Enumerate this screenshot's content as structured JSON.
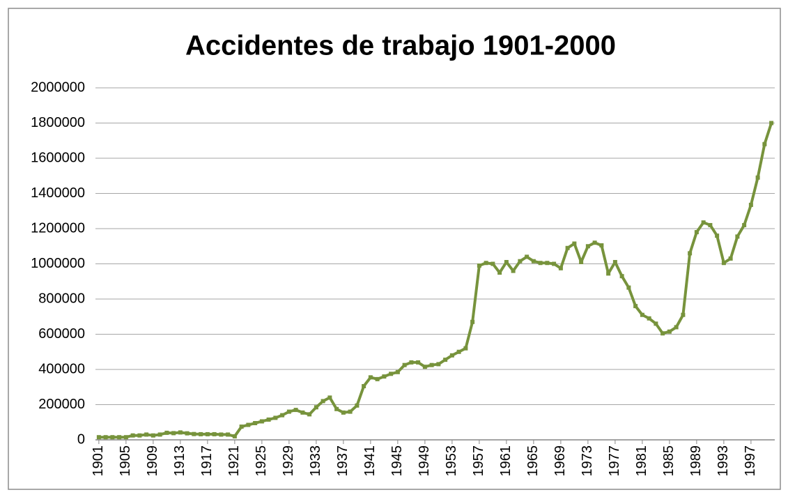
{
  "chart_data": {
    "type": "line",
    "title": "Accidentes de trabajo 1901-2000",
    "x": [
      1901,
      1902,
      1903,
      1904,
      1905,
      1906,
      1907,
      1908,
      1909,
      1910,
      1911,
      1912,
      1913,
      1914,
      1915,
      1916,
      1917,
      1918,
      1919,
      1920,
      1921,
      1922,
      1923,
      1924,
      1925,
      1926,
      1927,
      1928,
      1929,
      1930,
      1931,
      1932,
      1933,
      1934,
      1935,
      1936,
      1937,
      1938,
      1939,
      1940,
      1941,
      1942,
      1943,
      1944,
      1945,
      1946,
      1947,
      1948,
      1949,
      1950,
      1951,
      1952,
      1953,
      1954,
      1955,
      1956,
      1957,
      1958,
      1959,
      1960,
      1961,
      1962,
      1963,
      1964,
      1965,
      1966,
      1967,
      1968,
      1969,
      1970,
      1971,
      1972,
      1973,
      1974,
      1975,
      1976,
      1977,
      1978,
      1979,
      1980,
      1981,
      1982,
      1983,
      1984,
      1985,
      1986,
      1987,
      1988,
      1989,
      1990,
      1991,
      1992,
      1993,
      1994,
      1995,
      1996,
      1997,
      1998,
      1999,
      2000
    ],
    "series": [
      {
        "name": "Accidentes de trabajo",
        "color": "#77933c",
        "values": [
          15000,
          15000,
          15000,
          15000,
          15000,
          25000,
          25000,
          30000,
          25000,
          30000,
          40000,
          38000,
          42000,
          37000,
          33000,
          32000,
          32000,
          32000,
          30000,
          30000,
          20000,
          75000,
          85000,
          95000,
          105000,
          115000,
          125000,
          140000,
          160000,
          170000,
          155000,
          145000,
          185000,
          220000,
          240000,
          175000,
          155000,
          160000,
          195000,
          305000,
          355000,
          345000,
          360000,
          375000,
          385000,
          425000,
          440000,
          440000,
          415000,
          425000,
          430000,
          455000,
          480000,
          500000,
          520000,
          670000,
          990000,
          1005000,
          1000000,
          950000,
          1010000,
          960000,
          1015000,
          1040000,
          1015000,
          1005000,
          1005000,
          1000000,
          975000,
          1090000,
          1115000,
          1010000,
          1100000,
          1120000,
          1105000,
          945000,
          1010000,
          930000,
          865000,
          760000,
          710000,
          690000,
          660000,
          605000,
          615000,
          640000,
          710000,
          1060000,
          1180000,
          1235000,
          1220000,
          1160000,
          1005000,
          1030000,
          1155000,
          1220000,
          1335000,
          1490000,
          1680000,
          1800000
        ]
      }
    ],
    "xlim": [
      1900.5,
      2000.5
    ],
    "xticks": [
      1901,
      1905,
      1909,
      1913,
      1917,
      1921,
      1925,
      1929,
      1933,
      1937,
      1941,
      1945,
      1949,
      1953,
      1957,
      1961,
      1965,
      1969,
      1973,
      1977,
      1981,
      1985,
      1989,
      1993,
      1997
    ],
    "ylim": [
      0,
      2000000
    ],
    "yticks": [
      0,
      200000,
      400000,
      600000,
      800000,
      1000000,
      1200000,
      1400000,
      1600000,
      1800000,
      2000000
    ],
    "grid": true
  }
}
